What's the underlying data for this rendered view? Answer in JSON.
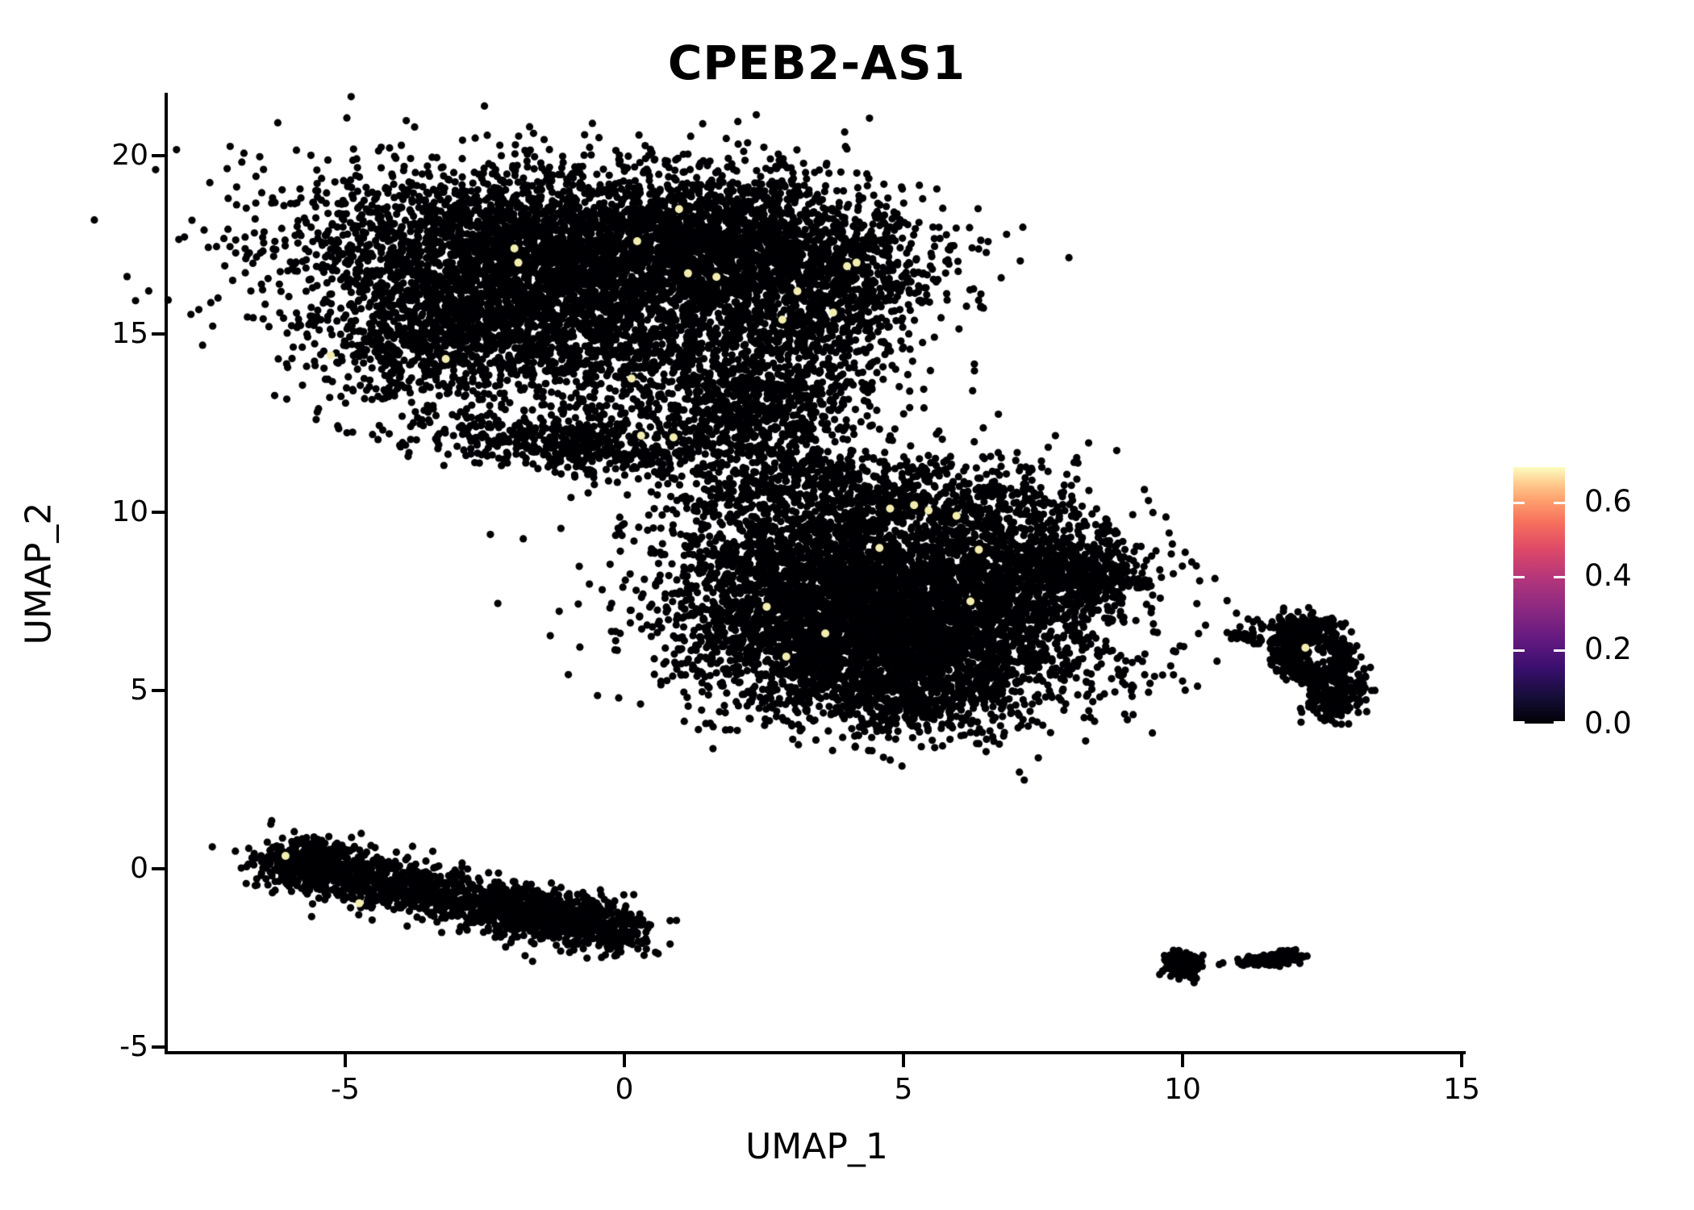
{
  "figure": {
    "title": "CPEB2-AS1",
    "xlabel": "UMAP_1",
    "ylabel": "UMAP_2"
  },
  "chart_data": {
    "type": "scatter",
    "title": "CPEB2-AS1",
    "xlabel": "UMAP_1",
    "ylabel": "UMAP_2",
    "xlim": [
      -8.2,
      15.1
    ],
    "ylim": [
      -5.2,
      21.7
    ],
    "grid": false,
    "x_ticks": [
      {
        "v": -5,
        "label": "-5"
      },
      {
        "v": 0,
        "label": "0"
      },
      {
        "v": 5,
        "label": "5"
      },
      {
        "v": 10,
        "label": "10"
      },
      {
        "v": 15,
        "label": "15"
      }
    ],
    "y_ticks": [
      {
        "v": 20,
        "label": "20"
      },
      {
        "v": 15,
        "label": "15"
      },
      {
        "v": 10,
        "label": "10"
      },
      {
        "v": 5,
        "label": "5"
      },
      {
        "v": 0,
        "label": "0"
      },
      {
        "v": -5,
        "label": "-5"
      }
    ],
    "point_color": "#000004",
    "highlight_color": "#f2edae",
    "point_radius_px": 4.6,
    "colorbar": {
      "colormap": "magma",
      "min": 0.0,
      "max": 0.694,
      "ticks": [
        {
          "v": 0.6,
          "label": "0.6"
        },
        {
          "v": 0.4,
          "label": "0.4"
        },
        {
          "v": 0.2,
          "label": "0.2"
        },
        {
          "v": 0.0,
          "label": "0.0"
        }
      ],
      "top_color": "#fcfdbf",
      "bottom_color": "#000004"
    },
    "clusters": [
      {
        "type": "gauss",
        "cx": -2.3,
        "cy": 17.1,
        "sx": 2.0,
        "sy": 1.3,
        "rot": -5,
        "n": 2600
      },
      {
        "type": "gauss",
        "cx": 1.2,
        "cy": 17.5,
        "sx": 1.7,
        "sy": 1.15,
        "rot": 0,
        "n": 2100
      },
      {
        "type": "gauss",
        "cx": 3.5,
        "cy": 16.5,
        "sx": 1.15,
        "sy": 1.05,
        "rot": 0,
        "n": 900
      },
      {
        "type": "gauss",
        "cx": -3.5,
        "cy": 14.7,
        "sx": 1.05,
        "sy": 0.75,
        "rot": 25,
        "n": 520
      },
      {
        "type": "gauss",
        "cx": -0.7,
        "cy": 15.0,
        "sx": 1.5,
        "sy": 0.95,
        "rot": 0,
        "n": 750
      },
      {
        "type": "gauss",
        "cx": 2.7,
        "cy": 14.0,
        "sx": 0.95,
        "sy": 1.0,
        "rot": 0,
        "n": 520
      },
      {
        "type": "gauss",
        "cx": 2.1,
        "cy": 12.8,
        "sx": 0.75,
        "sy": 0.6,
        "rot": 0,
        "n": 260
      },
      {
        "type": "gauss",
        "cx": 0.5,
        "cy": 13.4,
        "sx": 1.8,
        "sy": 0.75,
        "rot": 0,
        "n": 300
      },
      {
        "type": "gauss",
        "cx": -0.8,
        "cy": 11.9,
        "sx": 1.45,
        "sy": 0.42,
        "rot": -8,
        "n": 560
      },
      {
        "type": "gauss",
        "cx": 3.1,
        "cy": 11.3,
        "sx": 0.9,
        "sy": 0.5,
        "rot": -30,
        "n": 150
      },
      {
        "type": "gauss",
        "cx": 2.0,
        "cy": 10.4,
        "sx": 0.5,
        "sy": 0.35,
        "rot": 0,
        "n": 60
      },
      {
        "type": "gauss",
        "cx": 4.2,
        "cy": 8.3,
        "sx": 1.9,
        "sy": 1.5,
        "rot": 0,
        "n": 2800
      },
      {
        "type": "gauss",
        "cx": 5.6,
        "cy": 6.4,
        "sx": 1.7,
        "sy": 1.1,
        "rot": -12,
        "n": 1800
      },
      {
        "type": "gauss",
        "cx": 3.2,
        "cy": 6.3,
        "sx": 1.15,
        "sy": 1.05,
        "rot": 0,
        "n": 850
      },
      {
        "type": "gauss",
        "cx": 7.3,
        "cy": 8.3,
        "sx": 1.0,
        "sy": 0.72,
        "rot": 12,
        "n": 600
      },
      {
        "type": "gauss",
        "cx": 8.35,
        "cy": 8.2,
        "sx": 0.5,
        "sy": 0.42,
        "rot": 0,
        "n": 190
      },
      {
        "type": "gauss",
        "cx": 4.9,
        "cy": 4.7,
        "sx": 0.95,
        "sy": 0.5,
        "rot": 0,
        "n": 330
      },
      {
        "type": "gauss",
        "cx": 4.6,
        "cy": 10.5,
        "sx": 1.6,
        "sy": 0.65,
        "rot": 0,
        "n": 330
      },
      {
        "type": "gauss",
        "cx": 7.0,
        "cy": 9.8,
        "sx": 0.8,
        "sy": 0.5,
        "rot": 0,
        "n": 120
      },
      {
        "type": "ring",
        "cx": 12.4,
        "cy": 5.95,
        "r": 0.48,
        "rsd": 0.13,
        "ex": 1.0,
        "ey": 1.15,
        "n": 330
      },
      {
        "type": "gauss",
        "cx": 12.75,
        "cy": 4.95,
        "sx": 0.3,
        "sy": 0.42,
        "rot": -15,
        "n": 200
      },
      {
        "type": "gauss",
        "cx": 12.1,
        "cy": 6.75,
        "sx": 0.42,
        "sy": 0.22,
        "rot": 0,
        "n": 150
      },
      {
        "type": "gauss",
        "cx": 11.78,
        "cy": 5.9,
        "sx": 0.13,
        "sy": 0.3,
        "rot": 0,
        "n": 60
      },
      {
        "type": "band",
        "x1": 10.85,
        "y1": 6.6,
        "x2": 11.55,
        "y2": 6.35,
        "sd": 0.07,
        "sdx": 0.1,
        "n": 35
      },
      {
        "type": "band",
        "x1": -6.15,
        "y1": 0.2,
        "x2": 0.15,
        "y2": -1.85,
        "sd": 0.36,
        "sdx": 0.2,
        "n": 1500
      },
      {
        "type": "gauss",
        "cx": -5.75,
        "cy": 0.15,
        "sx": 0.5,
        "sy": 0.35,
        "rot": 0,
        "n": 260
      },
      {
        "type": "gauss",
        "cx": -1.2,
        "cy": -1.3,
        "sx": 0.8,
        "sy": 0.35,
        "rot": -12,
        "n": 200
      },
      {
        "type": "gauss",
        "cx": 10.0,
        "cy": -2.7,
        "sx": 0.18,
        "sy": 0.16,
        "rot": 0,
        "n": 150
      },
      {
        "type": "gauss",
        "cx": 10.68,
        "cy": -2.62,
        "sx": 0.03,
        "sy": 0.03,
        "rot": 0,
        "n": 2
      },
      {
        "type": "band",
        "x1": 11.12,
        "y1": -2.62,
        "x2": 11.8,
        "y2": -2.52,
        "sd": 0.07,
        "sdx": 0.1,
        "n": 110
      },
      {
        "type": "gauss",
        "cx": 11.97,
        "cy": -2.45,
        "sx": 0.12,
        "sy": 0.08,
        "rot": 0,
        "n": 40
      }
    ],
    "stray_points": [
      {
        "x": 6.6,
        "y": 3.7
      }
    ],
    "highlight_cells": [
      {
        "x": -1.97,
        "y": 17.4
      },
      {
        "x": -1.9,
        "y": 17.0
      },
      {
        "x": 0.23,
        "y": 17.6
      },
      {
        "x": 0.98,
        "y": 18.5
      },
      {
        "x": 1.14,
        "y": 16.7
      },
      {
        "x": 1.65,
        "y": 16.6
      },
      {
        "x": 3.99,
        "y": 16.9
      },
      {
        "x": 4.16,
        "y": 17.0
      },
      {
        "x": 3.1,
        "y": 16.2
      },
      {
        "x": 3.74,
        "y": 15.6
      },
      {
        "x": 2.83,
        "y": 15.4
      },
      {
        "x": -3.2,
        "y": 14.3
      },
      {
        "x": -5.26,
        "y": 14.4
      },
      {
        "x": 0.13,
        "y": 13.75
      },
      {
        "x": 0.3,
        "y": 12.15
      },
      {
        "x": 0.88,
        "y": 12.1
      },
      {
        "x": 4.76,
        "y": 10.1
      },
      {
        "x": 5.19,
        "y": 10.2
      },
      {
        "x": 4.57,
        "y": 9.0
      },
      {
        "x": 5.45,
        "y": 10.05
      },
      {
        "x": 5.95,
        "y": 9.9
      },
      {
        "x": 6.35,
        "y": 8.95
      },
      {
        "x": 6.2,
        "y": 7.5
      },
      {
        "x": 2.55,
        "y": 7.35
      },
      {
        "x": 3.6,
        "y": 6.6
      },
      {
        "x": 2.9,
        "y": 5.95
      },
      {
        "x": -6.07,
        "y": 0.36
      },
      {
        "x": -4.75,
        "y": -0.97
      },
      {
        "x": 12.2,
        "y": 6.2
      }
    ]
  }
}
